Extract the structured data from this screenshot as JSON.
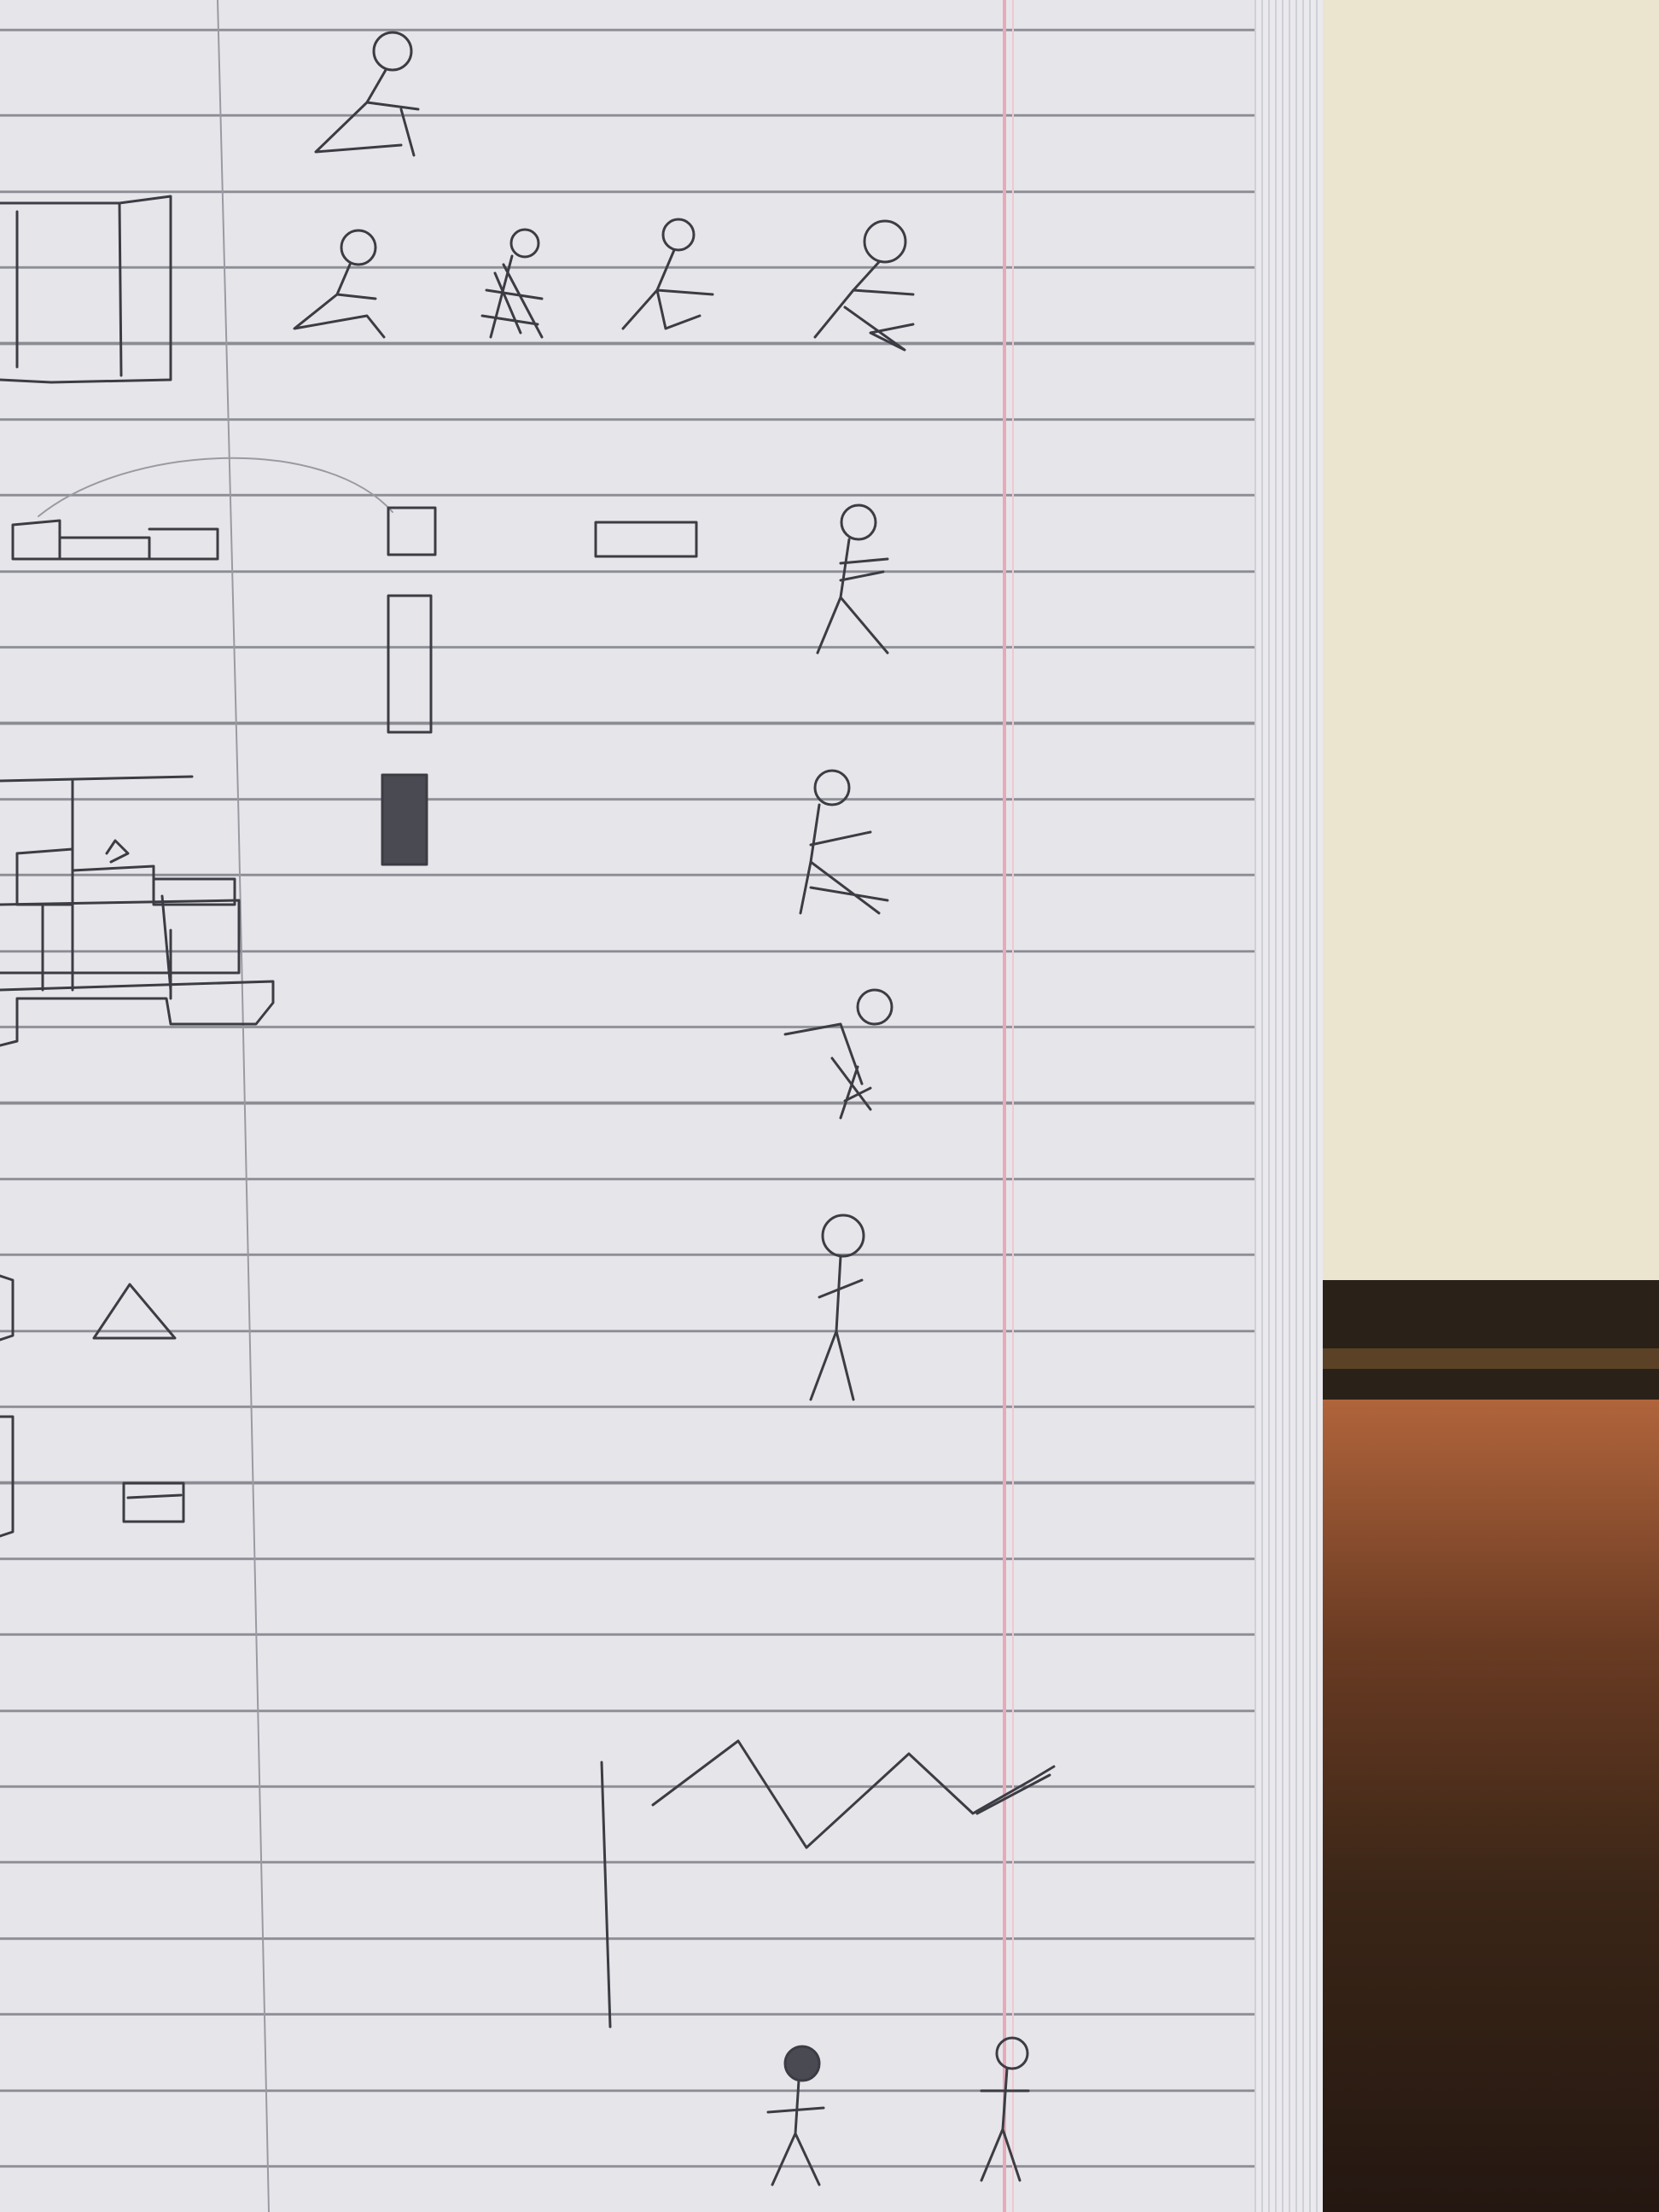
{
  "photo": {
    "subject": "",
    "colors": {
      "paper": "#e6e6ea",
      "rule_line": "#8c8c95",
      "margin_line": "#e7aab8",
      "pencil": "#3c3c44",
      "wall": "#ebe5d0",
      "shelf": "#2a2219"
    }
  }
}
